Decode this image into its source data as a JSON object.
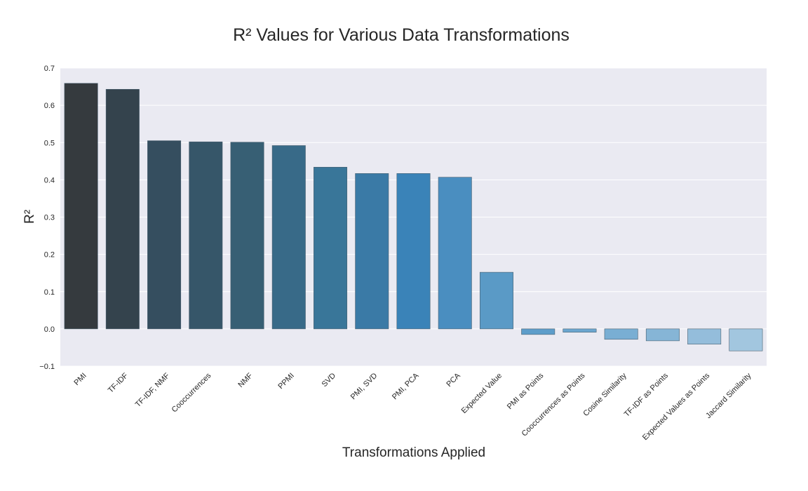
{
  "chart_data": {
    "type": "bar",
    "title": "R² Values for Various Data Transformations",
    "xlabel": "Transformations Applied",
    "ylabel": "R²",
    "ylim": [
      -0.1,
      0.7
    ],
    "yticks": [
      "−0.1",
      "0.0",
      "0.1",
      "0.2",
      "0.3",
      "0.4",
      "0.5",
      "0.6",
      "0.7"
    ],
    "grid": true,
    "legend": "none",
    "categories": [
      "PMI",
      "TF-IDF",
      "TF-IDF, NMF",
      "Cooccurrences",
      "NMF",
      "PPMI",
      "SVD",
      "PMI, SVD",
      "PMI, PCA",
      "PCA",
      "Expected Value",
      "PMI as Points",
      "Cooccurrences as Points",
      "Cosine Similarity",
      "TF-IDF as Points",
      "Expected Values as Points",
      "Jaccard Similarity"
    ],
    "values": [
      0.659,
      0.643,
      0.505,
      0.502,
      0.501,
      0.492,
      0.434,
      0.417,
      0.417,
      0.407,
      0.152,
      -0.015,
      -0.009,
      -0.028,
      -0.032,
      -0.041,
      -0.059
    ],
    "colors": [
      "#353a3e",
      "#34434d",
      "#354e5f",
      "#365669",
      "#375f74",
      "#386a88",
      "#397699",
      "#3a7aa6",
      "#3a83b8",
      "#4a8ec0",
      "#5a9ac6",
      "#5d9dca",
      "#6ba6cf",
      "#79aed3",
      "#86b5d6",
      "#94bddb",
      "#a2c6df"
    ],
    "background_color": "#eaeaf2"
  }
}
